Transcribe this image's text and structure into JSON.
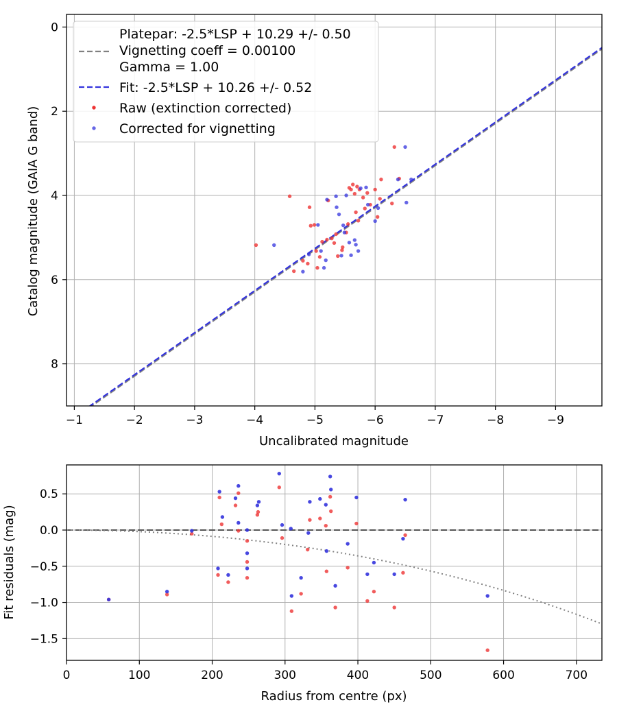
{
  "chart_data": [
    {
      "type": "scatter",
      "title": "",
      "xlabel": "Uncalibrated magnitude",
      "ylabel": "Catalog magnitude (GAIA G band)",
      "xlim": [
        -0.87,
        -9.77
      ],
      "ylim": [
        9.0,
        -0.3
      ],
      "x_ticks": [
        -1,
        -2,
        -3,
        -4,
        -5,
        -6,
        -7,
        -8,
        -9
      ],
      "x_tick_labels": [
        "−1",
        "−2",
        "−3",
        "−4",
        "−5",
        "−6",
        "−7",
        "−8",
        "−9"
      ],
      "y_ticks": [
        0,
        2,
        4,
        6,
        8
      ],
      "y_tick_labels": [
        "0",
        "2",
        "4",
        "6",
        "8"
      ],
      "grid": true,
      "legend_position": "top-left",
      "legend": [
        {
          "label": "Platepar: -2.5*LSP + 10.29 +/- 0.50",
          "kind": "blank"
        },
        {
          "label": "Vignetting coeff = 0.00100",
          "kind": "line",
          "style": "dashed",
          "color": "#808080"
        },
        {
          "label": "Gamma = 1.00",
          "kind": "blank"
        },
        {
          "label": "Fit: -2.5*LSP + 10.26 +/- 0.52",
          "kind": "line",
          "style": "dashed",
          "color": "#3333dd"
        },
        {
          "label": "Raw (extinction corrected)",
          "kind": "marker",
          "color": "#ee3333"
        },
        {
          "label": "Corrected for vignetting",
          "kind": "marker",
          "color": "#3333dd"
        }
      ],
      "lines": [
        {
          "label": "Platepar",
          "slope": 1.0,
          "intercept": 10.29,
          "color": "#808080",
          "style": "dashed"
        },
        {
          "label": "Fit",
          "slope": 1.0,
          "intercept": 10.26,
          "color": "#3333dd",
          "style": "dashed"
        }
      ],
      "series": [
        {
          "name": "Raw (extinction corrected)",
          "color": "#ee3333",
          "points": [
            [
              -4.02,
              5.18
            ],
            [
              -4.58,
              4.02
            ],
            [
              -4.65,
              5.8
            ],
            [
              -4.8,
              5.55
            ],
            [
              -4.88,
              5.62
            ],
            [
              -4.91,
              4.28
            ],
            [
              -4.93,
              4.72
            ],
            [
              -4.99,
              4.7
            ],
            [
              -5.02,
              5.32
            ],
            [
              -5.04,
              5.72
            ],
            [
              -5.08,
              5.46
            ],
            [
              -5.12,
              5.1
            ],
            [
              -5.2,
              5.05
            ],
            [
              -5.22,
              4.12
            ],
            [
              -5.28,
              5.02
            ],
            [
              -5.32,
              5.13
            ],
            [
              -5.35,
              4.92
            ],
            [
              -5.38,
              5.44
            ],
            [
              -5.45,
              5.3
            ],
            [
              -5.46,
              5.23
            ],
            [
              -5.52,
              4.88
            ],
            [
              -5.55,
              4.68
            ],
            [
              -5.57,
              3.82
            ],
            [
              -5.6,
              3.86
            ],
            [
              -5.63,
              3.74
            ],
            [
              -5.66,
              3.96
            ],
            [
              -5.68,
              4.4
            ],
            [
              -5.7,
              3.79
            ],
            [
              -5.72,
              4.6
            ],
            [
              -5.74,
              3.86
            ],
            [
              -5.8,
              4.05
            ],
            [
              -5.83,
              4.31
            ],
            [
              -5.87,
              3.94
            ],
            [
              -5.92,
              4.22
            ],
            [
              -6.0,
              3.86
            ],
            [
              -6.04,
              4.51
            ],
            [
              -6.08,
              4.08
            ],
            [
              -6.1,
              3.62
            ],
            [
              -6.28,
              4.19
            ],
            [
              -6.32,
              2.85
            ],
            [
              -6.4,
              3.6
            ]
          ]
        },
        {
          "name": "Corrected for vignetting",
          "color": "#3333dd",
          "points": [
            [
              -4.32,
              5.18
            ],
            [
              -4.8,
              5.81
            ],
            [
              -4.9,
              5.4
            ],
            [
              -5.05,
              4.7
            ],
            [
              -5.1,
              5.32
            ],
            [
              -5.15,
              5.72
            ],
            [
              -5.18,
              5.54
            ],
            [
              -5.2,
              4.1
            ],
            [
              -5.35,
              4.02
            ],
            [
              -5.36,
              4.28
            ],
            [
              -5.4,
              4.45
            ],
            [
              -5.44,
              5.43
            ],
            [
              -5.47,
              4.71
            ],
            [
              -5.49,
              4.88
            ],
            [
              -5.52,
              4.0
            ],
            [
              -5.57,
              5.12
            ],
            [
              -5.6,
              5.42
            ],
            [
              -5.66,
              5.06
            ],
            [
              -5.68,
              5.17
            ],
            [
              -5.72,
              5.32
            ],
            [
              -5.76,
              3.83
            ],
            [
              -5.85,
              3.81
            ],
            [
              -5.88,
              4.22
            ],
            [
              -6.0,
              4.61
            ],
            [
              -6.05,
              4.3
            ],
            [
              -6.38,
              3.62
            ],
            [
              -6.5,
              2.85
            ],
            [
              -6.52,
              4.17
            ],
            [
              -6.6,
              3.62
            ]
          ]
        }
      ]
    },
    {
      "type": "scatter",
      "title": "",
      "xlabel": "Radius from centre (px)",
      "ylabel": "Fit residuals (mag)",
      "xlim": [
        0,
        735
      ],
      "ylim": [
        -1.8,
        0.9
      ],
      "x_ticks": [
        0,
        100,
        200,
        300,
        400,
        500,
        600,
        700
      ],
      "x_tick_labels": [
        "0",
        "100",
        "200",
        "300",
        "400",
        "500",
        "600",
        "700"
      ],
      "y_ticks": [
        0.5,
        0.0,
        -0.5,
        -1.0,
        -1.5
      ],
      "y_tick_labels": [
        "0.5",
        "0.0",
        "−0.5",
        "−1.0",
        "−1.5"
      ],
      "grid": true,
      "reference_lines": [
        {
          "kind": "horizontal",
          "y": 0.0,
          "color": "#555555",
          "style": "dashed"
        },
        {
          "kind": "curve",
          "vignetting_coeff": 0.001,
          "color": "#808080",
          "style": "dotted"
        }
      ],
      "series": [
        {
          "name": "Raw (extinction corrected)",
          "color": "#ee3333",
          "points": [
            [
              58,
              -0.96
            ],
            [
              138,
              -0.89
            ],
            [
              172,
              -0.05
            ],
            [
              208,
              -0.62
            ],
            [
              210,
              0.45
            ],
            [
              213,
              0.08
            ],
            [
              222,
              -0.72
            ],
            [
              232,
              0.34
            ],
            [
              236,
              0.51
            ],
            [
              236,
              -0.01
            ],
            [
              248,
              -0.15
            ],
            [
              248,
              -0.44
            ],
            [
              248,
              -0.66
            ],
            [
              262,
              0.21
            ],
            [
              263,
              0.25
            ],
            [
              292,
              0.59
            ],
            [
              296,
              -0.11
            ],
            [
              309,
              -1.12
            ],
            [
              322,
              -0.88
            ],
            [
              331,
              -0.27
            ],
            [
              334,
              0.14
            ],
            [
              348,
              0.16
            ],
            [
              356,
              0.06
            ],
            [
              357,
              -0.57
            ],
            [
              362,
              0.46
            ],
            [
              363,
              0.26
            ],
            [
              369,
              -1.07
            ],
            [
              386,
              -0.52
            ],
            [
              398,
              0.09
            ],
            [
              413,
              -0.98
            ],
            [
              422,
              -0.85
            ],
            [
              450,
              -1.07
            ],
            [
              462,
              -0.59
            ],
            [
              465,
              -0.07
            ],
            [
              578,
              -1.66
            ]
          ]
        },
        {
          "name": "Corrected for vignetting",
          "color": "#3333dd",
          "points": [
            [
              58,
              -0.96
            ],
            [
              138,
              -0.85
            ],
            [
              172,
              -0.01
            ],
            [
              208,
              -0.53
            ],
            [
              210,
              0.53
            ],
            [
              214,
              0.18
            ],
            [
              222,
              -0.62
            ],
            [
              232,
              0.44
            ],
            [
              236,
              0.61
            ],
            [
              236,
              0.1
            ],
            [
              248,
              0.0
            ],
            [
              248,
              -0.32
            ],
            [
              248,
              -0.53
            ],
            [
              262,
              0.34
            ],
            [
              264,
              0.39
            ],
            [
              292,
              0.78
            ],
            [
              296,
              0.07
            ],
            [
              308,
              0.02
            ],
            [
              309,
              -0.91
            ],
            [
              322,
              -0.66
            ],
            [
              332,
              -0.04
            ],
            [
              334,
              0.39
            ],
            [
              348,
              0.43
            ],
            [
              356,
              0.35
            ],
            [
              357,
              -0.29
            ],
            [
              362,
              0.74
            ],
            [
              363,
              0.56
            ],
            [
              369,
              -0.77
            ],
            [
              386,
              -0.19
            ],
            [
              398,
              0.45
            ],
            [
              413,
              -0.61
            ],
            [
              422,
              -0.45
            ],
            [
              450,
              -0.61
            ],
            [
              462,
              -0.12
            ],
            [
              465,
              0.42
            ],
            [
              578,
              -0.91
            ]
          ]
        }
      ]
    }
  ]
}
